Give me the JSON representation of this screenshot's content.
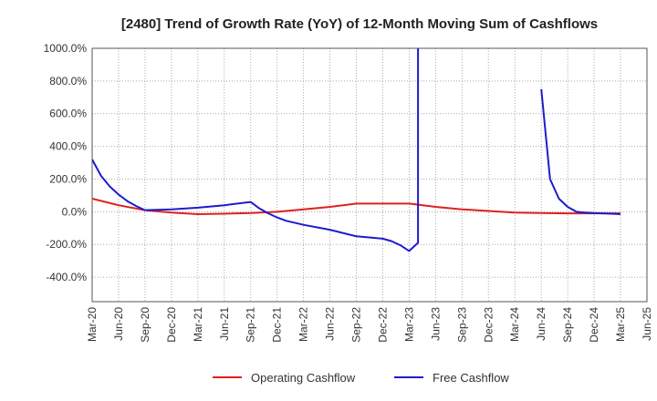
{
  "chart_data": {
    "type": "line",
    "title": "[2480]  Trend of Growth Rate (YoY) of 12-Month Moving Sum of Cashflows",
    "xlabel": "",
    "ylabel": "",
    "x_ticks": [
      "Mar-20",
      "Jun-20",
      "Sep-20",
      "Dec-20",
      "Mar-21",
      "Jun-21",
      "Sep-21",
      "Dec-21",
      "Mar-22",
      "Jun-22",
      "Sep-22",
      "Dec-22",
      "Mar-23",
      "Jun-23",
      "Sep-23",
      "Dec-23",
      "Mar-24",
      "Jun-24",
      "Sep-24",
      "Dec-24",
      "Mar-25",
      "Jun-25"
    ],
    "y_ticks": [
      {
        "value": 1000,
        "label": "1000.0%"
      },
      {
        "value": 800,
        "label": "800.0%"
      },
      {
        "value": 600,
        "label": "600.0%"
      },
      {
        "value": 400,
        "label": "400.0%"
      },
      {
        "value": 200,
        "label": "200.0%"
      },
      {
        "value": 0,
        "label": "0.0%"
      },
      {
        "value": -200,
        "label": "-200.0%"
      },
      {
        "value": -400,
        "label": "-400.0%"
      }
    ],
    "ylim": [
      -550,
      1000
    ],
    "grid": true,
    "legend_position": "bottom",
    "series": [
      {
        "name": "Operating Cashflow",
        "color": "#e02020",
        "points": [
          [
            "Mar-20",
            80
          ],
          [
            "Jun-20",
            40
          ],
          [
            "Sep-20",
            10
          ],
          [
            "Dec-20",
            -5
          ],
          [
            "Mar-21",
            -15
          ],
          [
            "Jun-21",
            -12
          ],
          [
            "Sep-21",
            -8
          ],
          [
            "Dec-21",
            0
          ],
          [
            "Mar-22",
            15
          ],
          [
            "Jun-22",
            30
          ],
          [
            "Sep-22",
            50
          ],
          [
            "Dec-22",
            50
          ],
          [
            "Mar-23",
            50
          ],
          [
            "Jun-23",
            30
          ],
          [
            "Sep-23",
            15
          ],
          [
            "Dec-23",
            5
          ],
          [
            "Mar-24",
            -5
          ],
          [
            "Jun-24",
            -8
          ],
          [
            "Sep-24",
            -10
          ],
          [
            "Dec-24",
            -10
          ],
          [
            "Mar-25",
            -10
          ]
        ]
      },
      {
        "name": "Free Cashflow",
        "color": "#1c1ccc",
        "segments": [
          [
            [
              "Mar-20",
              320
            ],
            [
              "Apr-20",
              220
            ],
            [
              "May-20",
              155
            ],
            [
              "Jun-20",
              105
            ],
            [
              "Jul-20",
              65
            ],
            [
              "Aug-20",
              35
            ],
            [
              "Sep-20",
              10
            ],
            [
              "Dec-20",
              15
            ],
            [
              "Mar-21",
              25
            ],
            [
              "Jun-21",
              40
            ],
            [
              "Sep-21",
              60
            ],
            [
              "Oct-21",
              20
            ],
            [
              "Nov-21",
              -10
            ],
            [
              "Dec-21",
              -35
            ],
            [
              "Jan-22",
              -55
            ],
            [
              "Mar-22",
              -80
            ],
            [
              "Jun-22",
              -110
            ],
            [
              "Sep-22",
              -150
            ],
            [
              "Dec-22",
              -165
            ],
            [
              "Jan-23",
              -180
            ],
            [
              "Feb-23",
              -205
            ],
            [
              "Mar-23",
              -240
            ],
            [
              "Apr-23",
              -190
            ],
            [
              "Apr-23",
              1000
            ]
          ],
          [
            [
              "Jun-24",
              750
            ],
            [
              "Jul-24",
              200
            ],
            [
              "Aug-24",
              80
            ],
            [
              "Sep-24",
              30
            ],
            [
              "Oct-24",
              0
            ],
            [
              "Nov-24",
              -5
            ],
            [
              "Dec-24",
              -8
            ],
            [
              "Jan-25",
              -10
            ],
            [
              "Feb-25",
              -12
            ],
            [
              "Mar-25",
              -15
            ]
          ]
        ]
      }
    ]
  }
}
